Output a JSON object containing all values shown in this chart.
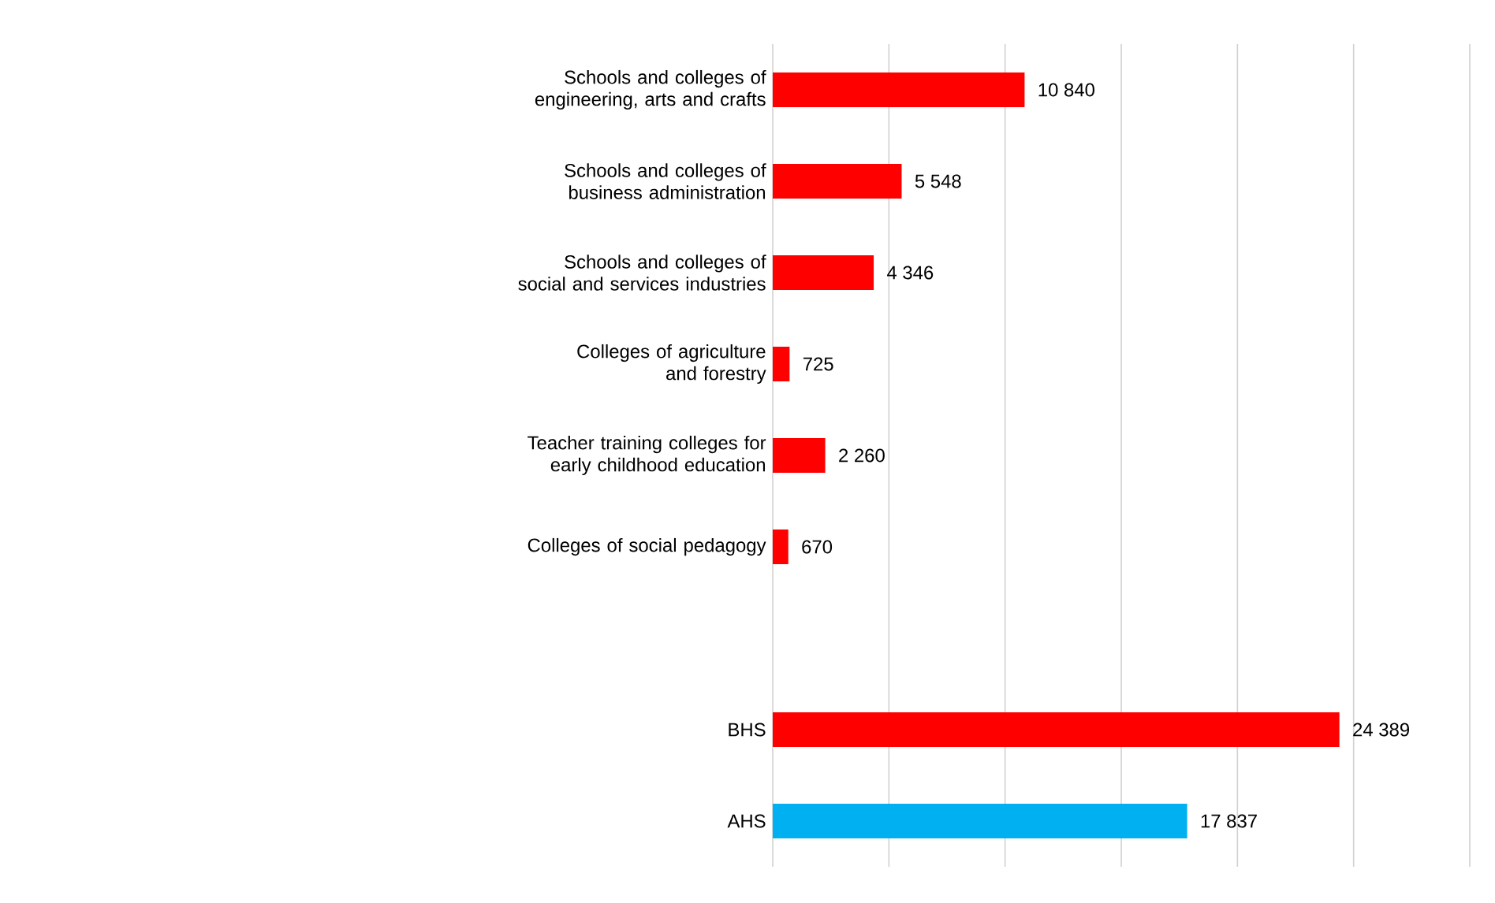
{
  "chart_data": {
    "type": "bar",
    "orientation": "horizontal",
    "categories": [
      "Schools and colleges of engineering, arts and crafts",
      "Schools and colleges of business administration",
      "Schools and colleges of social and services industries",
      "Colleges of agriculture and forestry",
      "Teacher training colleges for early childhood education",
      "Colleges of social pedagogy",
      null,
      "BHS",
      "AHS"
    ],
    "values": [
      10840,
      5548,
      4346,
      725,
      2260,
      670,
      null,
      24389,
      17837
    ],
    "value_labels": [
      "10 840",
      "5 548",
      "4 346",
      "725",
      "2 260",
      "670",
      null,
      "24 389",
      "17 837"
    ],
    "colors": [
      "#ff0000",
      "#ff0000",
      "#ff0000",
      "#ff0000",
      "#ff0000",
      "#ff0000",
      "#ff0000",
      "#ff0000",
      "#00b0f0"
    ],
    "xlim": [
      0,
      30000
    ],
    "xticks": [
      {
        "value": 0,
        "label": null
      },
      {
        "value": 5000,
        "label": null
      },
      {
        "value": 10000,
        "label": null
      },
      {
        "value": 15000,
        "label": null
      },
      {
        "value": 20000,
        "label": null
      },
      {
        "value": 25000,
        "label": null
      },
      {
        "value": 30000,
        "label": null
      }
    ],
    "grid": "x",
    "tick_labels": "y"
  }
}
